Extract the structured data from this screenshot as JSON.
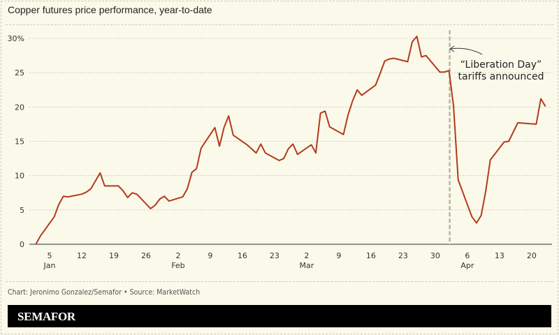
{
  "chart_data": {
    "type": "line",
    "title": "Copper futures price performance, year-to-date",
    "xlabel": "",
    "ylabel": "",
    "x_unit": "day of year 2025 (Jan 1 = 1)",
    "y_unit": "% change year-to-date",
    "ylim": [
      0,
      30
    ],
    "xlim": [
      1,
      115
    ],
    "grid": true,
    "y_ticks": [
      0,
      5,
      10,
      15,
      20,
      25,
      30
    ],
    "y_tick_labels": [
      "0",
      "5",
      "10",
      "15",
      "20",
      "25",
      "30%"
    ],
    "x_ticks": [
      5,
      12,
      19,
      26,
      33,
      40,
      47,
      54,
      61,
      68,
      75,
      82,
      89,
      96,
      103,
      110
    ],
    "x_tick_labels": [
      "5",
      "12",
      "19",
      "26",
      "2",
      "9",
      "16",
      "23",
      "2",
      "9",
      "16",
      "23",
      "30",
      "6",
      "13",
      "20"
    ],
    "month_labels": [
      {
        "day": 5,
        "label": "Jan"
      },
      {
        "day": 33,
        "label": "Feb"
      },
      {
        "day": 61,
        "label": "Mar"
      },
      {
        "day": 96,
        "label": "Apr"
      }
    ],
    "series": [
      {
        "name": "Copper futures",
        "color": "#b23a1c",
        "x": [
          2,
          3,
          6,
          7,
          8,
          9,
          12,
          13,
          14,
          16,
          17,
          20,
          21,
          22,
          23,
          24,
          27,
          28,
          29,
          30,
          31,
          34,
          35,
          36,
          37,
          38,
          41,
          42,
          43,
          44,
          45,
          48,
          49,
          50,
          51,
          52,
          55,
          56,
          57,
          58,
          59,
          62,
          63,
          64,
          65,
          66,
          69,
          70,
          71,
          72,
          73,
          76,
          77,
          78,
          79,
          80,
          83,
          84,
          85,
          86,
          87,
          90,
          91,
          92,
          93,
          94,
          97,
          98,
          99,
          100,
          101,
          104,
          105,
          107,
          111,
          112,
          113
        ],
        "values": [
          0,
          1.2,
          4.0,
          5.8,
          7.0,
          6.9,
          7.3,
          7.6,
          8.1,
          10.4,
          8.5,
          8.5,
          7.8,
          6.8,
          7.5,
          7.3,
          5.2,
          5.7,
          6.6,
          7.0,
          6.3,
          6.9,
          8.1,
          10.5,
          11.0,
          14.0,
          17.0,
          14.3,
          17.0,
          18.7,
          15.9,
          14.5,
          13.9,
          13.3,
          14.6,
          13.3,
          12.2,
          12.5,
          13.9,
          14.6,
          13.1,
          14.5,
          13.3,
          19.1,
          19.4,
          17.1,
          16.0,
          18.8,
          20.9,
          22.5,
          21.7,
          23.2,
          24.9,
          26.7,
          27.0,
          27.1,
          26.6,
          29.5,
          30.3,
          27.3,
          27.5,
          25.1,
          25.1,
          25.3,
          20.1,
          9.4,
          4.0,
          3.1,
          4.2,
          7.7,
          12.3,
          14.9,
          15.0,
          17.7,
          17.5,
          21.2,
          20.1
        ]
      }
    ],
    "annotations": [
      {
        "day": 92,
        "type": "vertical-dashed-line",
        "text_line1": "“Liberation Day”",
        "text_line2": "tariffs announced"
      }
    ]
  },
  "credit": "Chart: Jeronimo Gonzalez/Semafor • Source: MarketWatch",
  "logo": "SEMAFOR"
}
